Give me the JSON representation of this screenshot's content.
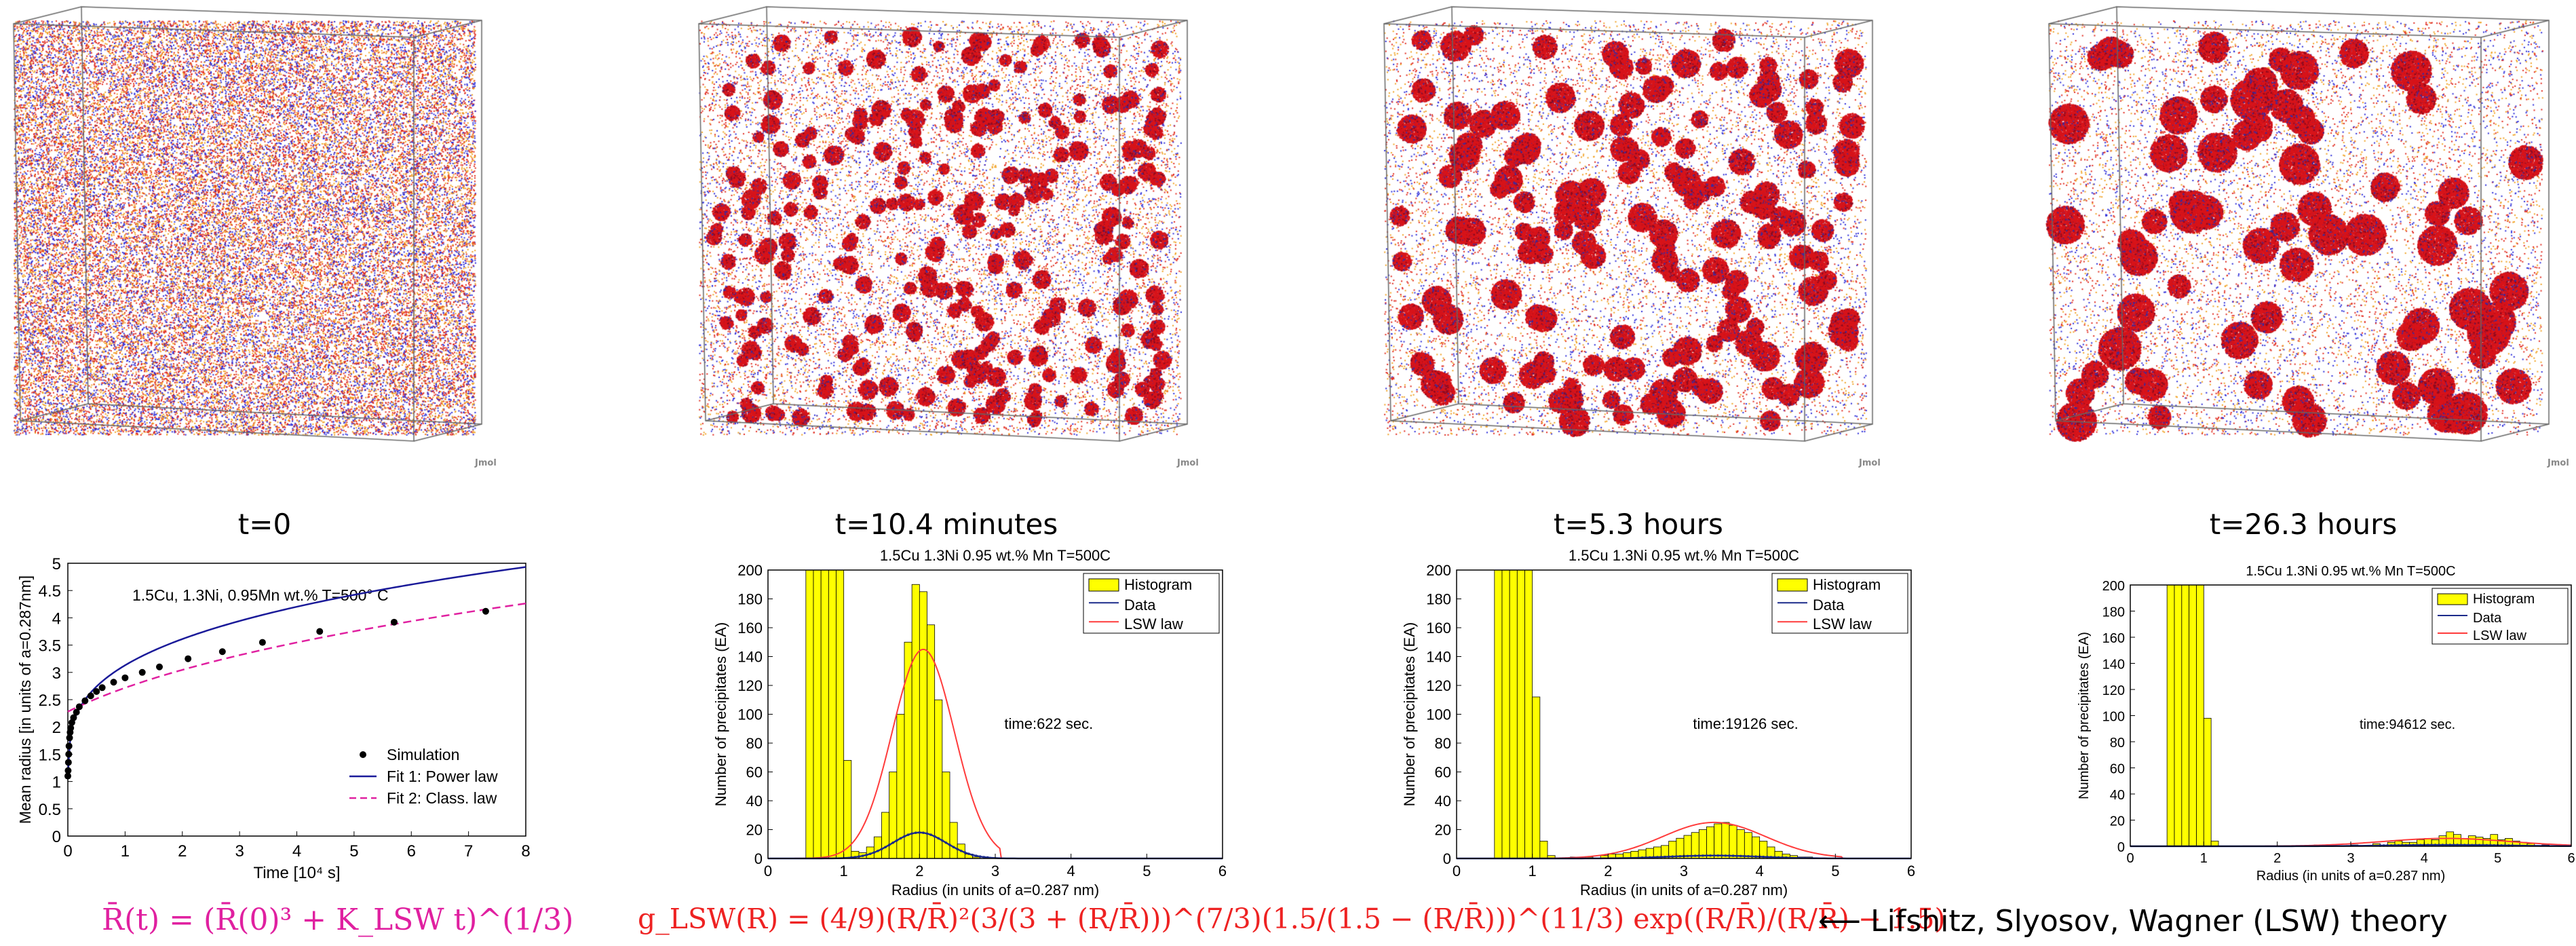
{
  "panels": [
    {
      "time_label": "t=0",
      "cube_label": "Jmol",
      "cluster_count": 0,
      "cluster_radius": 0
    },
    {
      "time_label": "t=10.4 minutes",
      "cube_label": "Jmol",
      "cluster_count": 260,
      "cluster_radius": 11
    },
    {
      "time_label": "t=5.3 hours",
      "cube_label": "Jmol",
      "cluster_count": 150,
      "cluster_radius": 17
    },
    {
      "time_label": "t=26.3 hours",
      "cube_label": "Jmol",
      "cluster_count": 70,
      "cluster_radius": 24
    }
  ],
  "colors": {
    "copper": "#e0281c",
    "nickel": "#2a2ad8",
    "manganese": "#f0a020",
    "histogram": "#ffff00",
    "lsw": "#ff3b3b",
    "data": "#1a2a8a",
    "magenta": "#e020a0",
    "formula_red": "#ee2222"
  },
  "chart_data": [
    {
      "type": "line",
      "title": "1.5Cu, 1.3Ni, 0.95Mn wt.%  T=500° C",
      "xlabel": "Time [10⁴ s]",
      "ylabel": "Mean radius [in units of a=0.287nm]",
      "xlim": [
        0,
        8
      ],
      "ylim": [
        0,
        5
      ],
      "xticks": [
        "0",
        "1",
        "2",
        "3",
        "4",
        "5",
        "6",
        "7",
        "8"
      ],
      "yticks": [
        "0",
        "0.5",
        "1",
        "1.5",
        "2",
        "2.5",
        "3",
        "3.5",
        "4",
        "4.5",
        "5"
      ],
      "legend": "bottom-right",
      "series": [
        {
          "name": "Simulation",
          "style": "dots",
          "x": [
            0.0,
            0.005,
            0.01,
            0.015,
            0.02,
            0.03,
            0.04,
            0.05,
            0.07,
            0.1,
            0.15,
            0.2,
            0.3,
            0.4,
            0.5,
            0.6,
            0.8,
            1.0,
            1.3,
            1.6,
            2.1,
            2.7,
            3.4,
            4.4,
            5.7,
            7.3
          ],
          "y": [
            1.1,
            1.2,
            1.35,
            1.5,
            1.65,
            1.8,
            1.9,
            1.98,
            2.08,
            2.17,
            2.27,
            2.37,
            2.48,
            2.57,
            2.65,
            2.72,
            2.82,
            2.9,
            3.0,
            3.1,
            3.25,
            3.38,
            3.55,
            3.75,
            3.92,
            4.12
          ]
        },
        {
          "name": "Fit 1: Power law",
          "style": "solid",
          "color": "#1a1a99"
        },
        {
          "name": "Fit 2: Class. law",
          "style": "dashed",
          "color": "#e020a0"
        }
      ]
    },
    {
      "type": "bar",
      "title": "1.5Cu 1.3Ni 0.95 wt.% Mn T=500C",
      "xlabel": "Radius (in units of a=0.287 nm)",
      "ylabel": "Number of precipitates (EA)",
      "annotation": "time:622 sec.",
      "xlim": [
        0,
        6
      ],
      "ylim": [
        0,
        200
      ],
      "xticks": [
        "0",
        "1",
        "2",
        "3",
        "4",
        "5",
        "6"
      ],
      "yticks": [
        "0",
        "20",
        "40",
        "60",
        "80",
        "100",
        "120",
        "140",
        "160",
        "180",
        "200"
      ],
      "legend": [
        "Histogram",
        "Data",
        "LSW law"
      ],
      "bin_width": 0.1,
      "bins_x": [
        0.5,
        0.6,
        0.7,
        0.8,
        0.9,
        1.0,
        1.1,
        1.2,
        1.3,
        1.4,
        1.5,
        1.6,
        1.7,
        1.8,
        1.9,
        2.0,
        2.1,
        2.2,
        2.3,
        2.4,
        2.5,
        2.6,
        2.7
      ],
      "bins_y": [
        200,
        200,
        200,
        200,
        200,
        68,
        5,
        4,
        8,
        15,
        32,
        60,
        100,
        150,
        190,
        185,
        162,
        110,
        60,
        25,
        10,
        3,
        1
      ],
      "lsw_mean": 2.05,
      "lsw_peak": 145,
      "data_mean": 2.0,
      "data_peak": 18,
      "data_width": 0.35
    },
    {
      "type": "bar",
      "title": "1.5Cu 1.3Ni 0.95 wt.% Mn T=500C",
      "xlabel": "Radius (in units of a=0.287 nm)",
      "ylabel": "Number of precipitates (EA)",
      "annotation": "time:19126 sec.",
      "xlim": [
        0,
        6
      ],
      "ylim": [
        0,
        200
      ],
      "xticks": [
        "0",
        "1",
        "2",
        "3",
        "4",
        "5",
        "6"
      ],
      "yticks": [
        "0",
        "20",
        "40",
        "60",
        "80",
        "100",
        "120",
        "140",
        "160",
        "180",
        "200"
      ],
      "legend": [
        "Histogram",
        "Data",
        "LSW law"
      ],
      "bin_width": 0.1,
      "bins_x": [
        0.5,
        0.6,
        0.7,
        0.8,
        0.9,
        1.0,
        1.1,
        1.2,
        1.5,
        1.7,
        1.9,
        2.0,
        2.1,
        2.2,
        2.3,
        2.4,
        2.5,
        2.6,
        2.7,
        2.8,
        2.9,
        3.0,
        3.1,
        3.2,
        3.3,
        3.4,
        3.5,
        3.6,
        3.7,
        3.8,
        3.9,
        4.0,
        4.1,
        4.2,
        4.3,
        4.4,
        4.5,
        4.6
      ],
      "bins_y": [
        200,
        200,
        200,
        200,
        200,
        112,
        12,
        2,
        1,
        1,
        2,
        3,
        3,
        4,
        5,
        6,
        7,
        8,
        9,
        12,
        14,
        16,
        18,
        20,
        22,
        24,
        25,
        23,
        20,
        18,
        15,
        12,
        8,
        5,
        3,
        2,
        1,
        1
      ],
      "lsw_mean": 3.4,
      "lsw_peak": 25,
      "data_mean": 3.4,
      "data_peak": 2,
      "data_width": 0.6
    },
    {
      "type": "bar",
      "title": "1.5Cu 1.3Ni 0.95 wt.% Mn T=500C",
      "xlabel": "Radius (in units of a=0.287 nm)",
      "ylabel": "Number of precipitates (EA)",
      "annotation": "time:94612 sec.",
      "xlim": [
        0,
        6
      ],
      "ylim": [
        0,
        200
      ],
      "xticks": [
        "0",
        "1",
        "2",
        "3",
        "4",
        "5",
        "6"
      ],
      "yticks": [
        "0",
        "20",
        "40",
        "60",
        "80",
        "100",
        "120",
        "140",
        "160",
        "180",
        "200"
      ],
      "legend": [
        "Histogram",
        "Data",
        "LSW law"
      ],
      "bin_width": 0.1,
      "bins_x": [
        0.5,
        0.6,
        0.7,
        0.8,
        0.9,
        1.0,
        1.1,
        2.5,
        3.0,
        3.3,
        3.5,
        3.6,
        3.7,
        3.8,
        3.9,
        4.0,
        4.1,
        4.2,
        4.3,
        4.4,
        4.5,
        4.6,
        4.7,
        4.8,
        4.9,
        5.0,
        5.1,
        5.2,
        5.3,
        5.4,
        5.6
      ],
      "bins_y": [
        200,
        200,
        200,
        200,
        200,
        98,
        4,
        1,
        1,
        2,
        3,
        4,
        3,
        3,
        5,
        6,
        5,
        8,
        11,
        9,
        6,
        8,
        7,
        6,
        9,
        5,
        6,
        4,
        3,
        2,
        1
      ],
      "lsw_mean": 4.3,
      "lsw_peak": 6,
      "data_mean": 4.3,
      "data_peak": 1,
      "data_width": 0.8
    }
  ],
  "formulas": {
    "lsw_mean_radius": "R̄(t) = (R̄(0)³ + K_LSW t)^(1/3)",
    "lsw_distribution": "g_LSW(R) = (4/9)(R/R̄)²(3/(3 + (R/R̄)))^(7/3)(1.5/(1.5 − (R/R̄)))^(11/3) exp((R/R̄)/(R/R̄) − 1.5)",
    "arrow": "⟵",
    "theory": "Lifshitz, Slyosov, Wagner (LSW) theory"
  }
}
